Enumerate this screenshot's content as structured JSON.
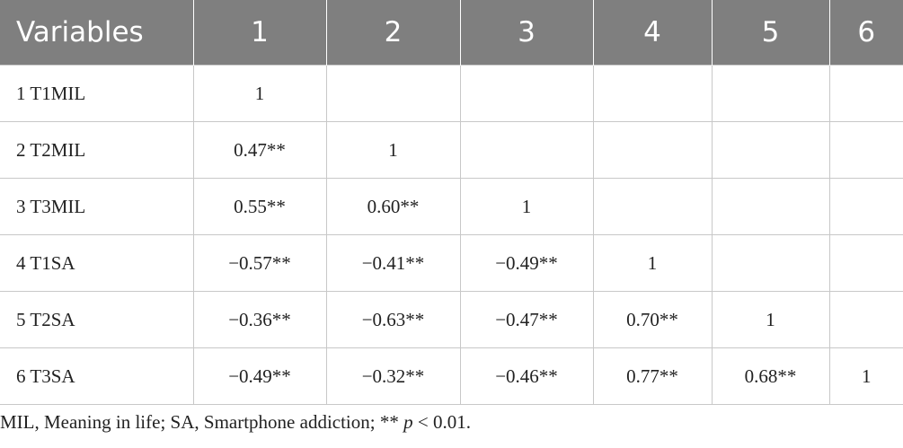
{
  "table": {
    "columns": [
      "Variables",
      "1",
      "2",
      "3",
      "4",
      "5",
      "6"
    ],
    "rows": [
      [
        "1 T1MIL",
        "1"
      ],
      [
        "2 T2MIL",
        "0.47**",
        "1"
      ],
      [
        "3 T3MIL",
        "0.55**",
        "0.60**",
        "1"
      ],
      [
        "4 T1SA",
        "−0.57**",
        "−0.41**",
        "−0.49**",
        "1"
      ],
      [
        "5 T2SA",
        "−0.36**",
        "−0.63**",
        "−0.47**",
        "0.70**",
        "1"
      ],
      [
        "6 T3SA",
        "−0.49**",
        "−0.32**",
        "−0.46**",
        "0.77**",
        "0.68**",
        "1"
      ]
    ]
  },
  "footnote": {
    "before": "MIL, Meaning in life; SA, Smartphone addiction; **",
    "italic": "p",
    "after": "< 0.01."
  }
}
